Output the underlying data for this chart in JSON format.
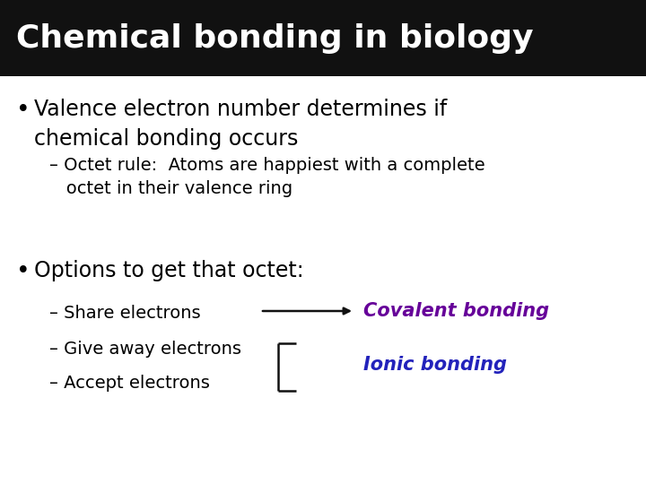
{
  "title": "Chemical bonding in biology",
  "title_bg": "#111111",
  "title_color": "#ffffff",
  "title_fontsize": 26,
  "bg_color": "#ffffff",
  "bullet1_text": "Valence electron number determines if\nchemical bonding occurs",
  "bullet1_sub": "– Octet rule:  Atoms are happiest with a complete\n   octet in their valence ring",
  "bullet2_text": "Options to get that octet:",
  "sub1": "– Share electrons",
  "sub2": "– Give away electrons",
  "sub3": "– Accept electrons",
  "covalent_label": "Covalent bonding",
  "covalent_color": "#660099",
  "ionic_label": "Ionic bonding",
  "ionic_color": "#2222bb",
  "arrow_color": "#111111",
  "bracket_color": "#111111",
  "body_fontsize": 17,
  "sub_fontsize": 14,
  "label_fontsize": 15
}
